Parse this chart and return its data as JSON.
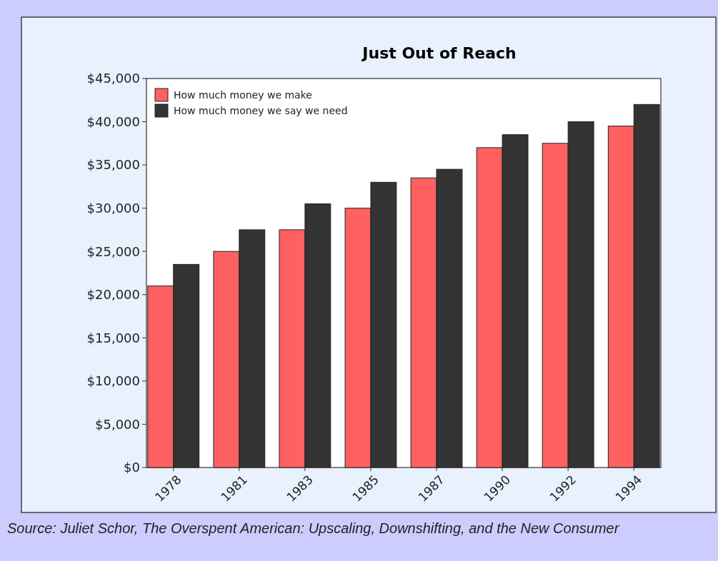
{
  "chart_data": {
    "type": "bar",
    "title": "Just Out of Reach",
    "categories": [
      "1978",
      "1981",
      "1983",
      "1985",
      "1987",
      "1990",
      "1992",
      "1994"
    ],
    "series": [
      {
        "name": "How much money we make",
        "color": "#ff6161",
        "values": [
          21000,
          25000,
          27500,
          30000,
          33500,
          37000,
          37500,
          39500
        ]
      },
      {
        "name": "How much money we say we need",
        "color": "#333333",
        "values": [
          23500,
          27500,
          30500,
          33000,
          34500,
          38500,
          40000,
          42000
        ]
      }
    ],
    "ylim": [
      0,
      45000
    ],
    "yticks": [
      {
        "value": 0,
        "label": "$0"
      },
      {
        "value": 5000,
        "label": "$5,000"
      },
      {
        "value": 10000,
        "label": "$10,000"
      },
      {
        "value": 15000,
        "label": "$15,000"
      },
      {
        "value": 20000,
        "label": "$20,000"
      },
      {
        "value": 25000,
        "label": "$25,000"
      },
      {
        "value": 30000,
        "label": "$30,000"
      },
      {
        "value": 35000,
        "label": "$35,000"
      },
      {
        "value": 40000,
        "label": "$40,000"
      },
      {
        "value": 45000,
        "label": "$45,000"
      }
    ],
    "legend": "top left",
    "grid": false,
    "annotations": [
      "Source: Juliet Schor, The Overspent American: Upscaling, Downshifting, and the New Consumer"
    ]
  }
}
